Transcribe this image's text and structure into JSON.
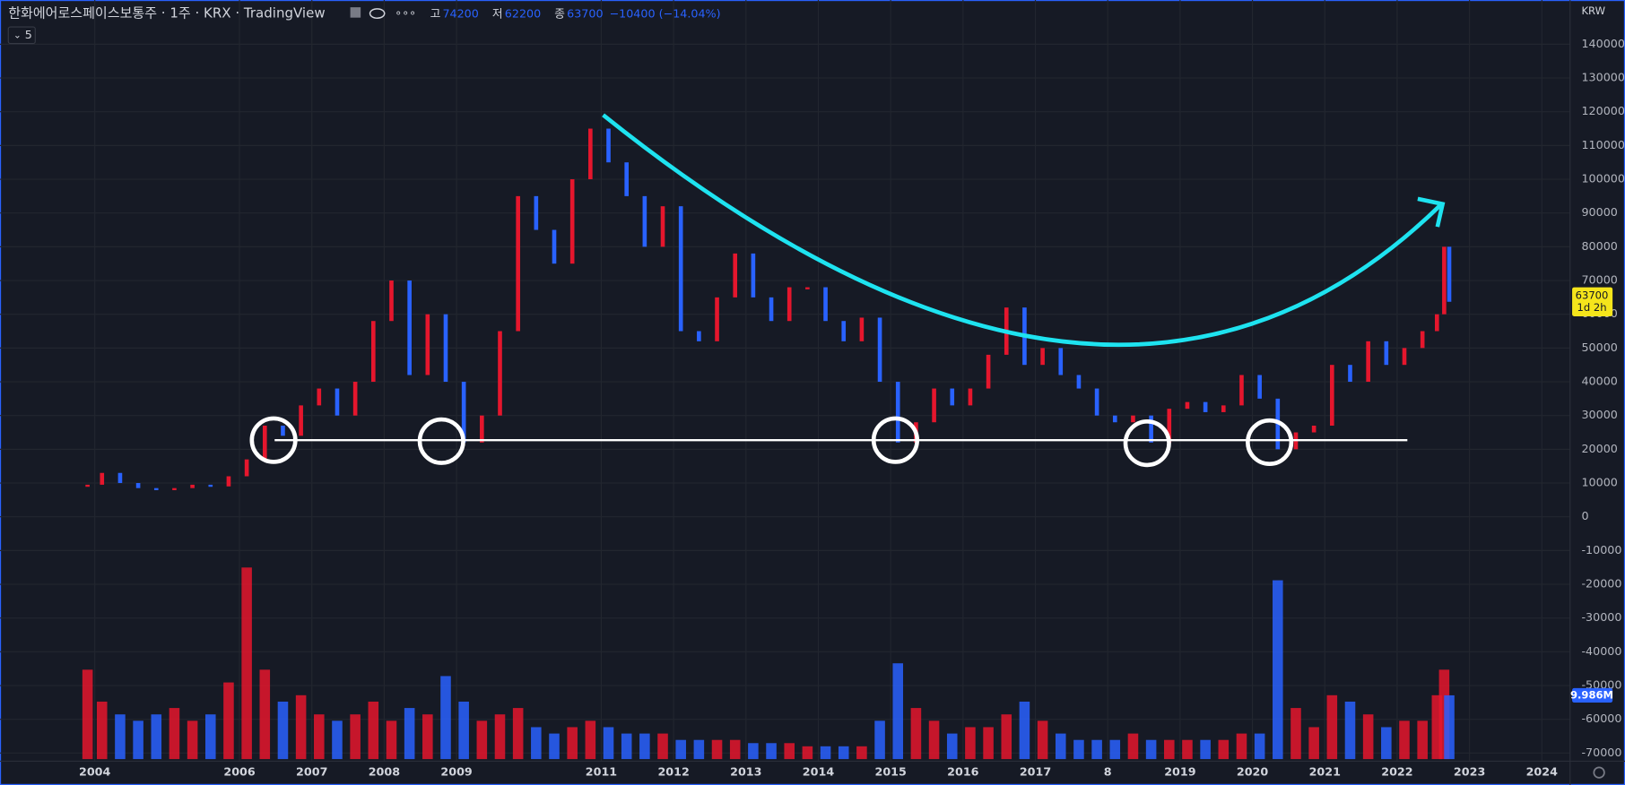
{
  "header": {
    "title": "한화에어로스페이스보통주 · 1주 · KRX · TradingView",
    "ohlc": [
      {
        "label": "고",
        "value": 74200
      },
      {
        "label": "저",
        "value": 62200
      },
      {
        "label": "종",
        "value": 63700
      }
    ],
    "change": "−10400 (−14.04%)",
    "indicator_count": "5",
    "currency": "KRW"
  },
  "chart_data": {
    "type": "price-bars",
    "x": [
      2003.9,
      2004.1,
      2004.35,
      2004.6,
      2004.85,
      2005.1,
      2005.35,
      2005.6,
      2005.85,
      2006.1,
      2006.35,
      2006.6,
      2006.85,
      2007.1,
      2007.35,
      2007.6,
      2007.85,
      2008.1,
      2008.35,
      2008.6,
      2008.85,
      2009.1,
      2009.35,
      2009.6,
      2009.85,
      2010.1,
      2010.35,
      2010.6,
      2010.85,
      2011.1,
      2011.35,
      2011.6,
      2011.85,
      2012.1,
      2012.35,
      2012.6,
      2012.85,
      2013.1,
      2013.35,
      2013.6,
      2013.85,
      2014.1,
      2014.35,
      2014.6,
      2014.85,
      2015.1,
      2015.35,
      2015.6,
      2015.85,
      2016.1,
      2016.35,
      2016.6,
      2016.85,
      2017.1,
      2017.35,
      2017.6,
      2017.85,
      2018.1,
      2018.35,
      2018.6,
      2018.85,
      2019.1,
      2019.35,
      2019.6,
      2019.85,
      2020.1,
      2020.35,
      2020.6,
      2020.85,
      2021.1,
      2021.35,
      2021.6,
      2021.85,
      2022.1,
      2022.35,
      2022.55,
      2022.65,
      2022.72
    ],
    "close": [
      9500,
      13000,
      10000,
      8500,
      8000,
      8500,
      9500,
      9000,
      12000,
      17000,
      27000,
      24000,
      33000,
      38000,
      30000,
      40000,
      58000,
      70000,
      42000,
      60000,
      40000,
      22000,
      30000,
      55000,
      95000,
      85000,
      75000,
      100000,
      115000,
      105000,
      95000,
      80000,
      92000,
      55000,
      52000,
      65000,
      78000,
      65000,
      58000,
      68000,
      68000,
      58000,
      52000,
      59000,
      40000,
      22000,
      28000,
      38000,
      33000,
      38000,
      48000,
      62000,
      45000,
      50000,
      42000,
      38000,
      30000,
      28000,
      30000,
      22000,
      32000,
      34000,
      31000,
      33000,
      42000,
      35000,
      20000,
      25000,
      27000,
      45000,
      40000,
      52000,
      45000,
      50000,
      55000,
      60000,
      80000,
      63700
    ],
    "volume": [
      14000000,
      9000000,
      7000000,
      6000000,
      7000000,
      8000000,
      6000000,
      7000000,
      12000000,
      30000000,
      14000000,
      9000000,
      10000000,
      7000000,
      6000000,
      7000000,
      9000000,
      6000000,
      8000000,
      7000000,
      13000000,
      9000000,
      6000000,
      7000000,
      8000000,
      5000000,
      4000000,
      5000000,
      6000000,
      5000000,
      4000000,
      4000000,
      4000000,
      3000000,
      3000000,
      3000000,
      3000000,
      2500000,
      2500000,
      2500000,
      2000000,
      2000000,
      2000000,
      2000000,
      6000000,
      15000000,
      8000000,
      6000000,
      4000000,
      5000000,
      5000000,
      7000000,
      9000000,
      6000000,
      4000000,
      3000000,
      3000000,
      3000000,
      4000000,
      3000000,
      3000000,
      3000000,
      3000000,
      3000000,
      4000000,
      4000000,
      28000000,
      8000000,
      5000000,
      10000000,
      9000000,
      7000000,
      5000000,
      6000000,
      6000000,
      10000000,
      14000000,
      9986000
    ],
    "volume_labels": [
      null,
      null,
      null,
      null,
      null,
      null,
      null,
      null,
      null,
      null,
      null,
      null,
      null,
      null,
      null,
      null,
      null,
      null,
      null,
      null,
      null,
      null,
      null,
      null,
      null,
      null,
      null,
      null,
      null,
      null,
      null,
      null,
      null,
      null,
      null,
      null,
      null,
      null,
      null,
      null,
      null,
      null,
      null,
      null,
      null,
      null,
      null,
      null,
      null,
      null,
      null,
      null,
      null,
      null,
      null,
      null,
      null,
      null,
      null,
      null,
      null,
      null,
      null,
      null,
      null,
      null,
      null,
      null,
      null,
      null,
      null,
      null,
      null,
      null,
      null,
      null,
      null,
      "9.986M"
    ],
    "countdown": "1d 2h",
    "up_color": "#e5162d",
    "down_color": "#2962ff",
    "xlim": [
      2002.69,
      2024.39
    ],
    "xticks": [
      2004,
      2006,
      2007,
      2008,
      2009,
      2011,
      2012,
      2013,
      2014,
      2015,
      2016,
      2017,
      {
        "value": 2018,
        "label": "8"
      },
      2019,
      2020,
      2021,
      2022,
      2023,
      2024
    ],
    "ylim": [
      -72400,
      153100
    ],
    "yticks": [
      -70000,
      -60000,
      -50000,
      -40000,
      -30000,
      -20000,
      -10000,
      0,
      10000,
      20000,
      30000,
      40000,
      50000,
      60000,
      70000,
      80000,
      90000,
      100000,
      110000,
      120000,
      130000,
      140000
    ],
    "grid": true
  }
}
